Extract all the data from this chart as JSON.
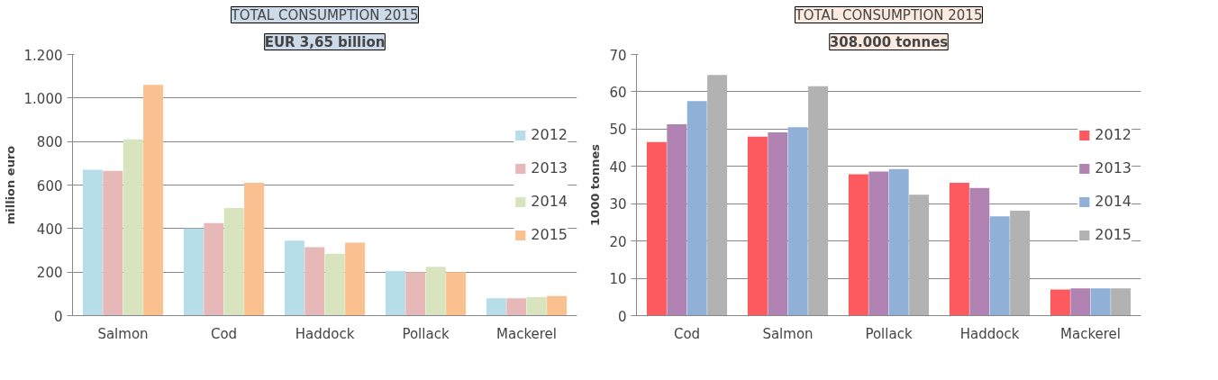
{
  "chart_data": [
    {
      "type": "bar",
      "title": "TOTAL CONSUMPTION 2015",
      "subtitle": "EUR 3,65 billion",
      "ylabel": "million euro",
      "categories": [
        "Salmon",
        "Cod",
        "Haddock",
        "Pollack",
        "Mackerel"
      ],
      "series": [
        {
          "name": "2012",
          "color": "#b7dde8",
          "values": [
            670,
            400,
            345,
            205,
            80
          ]
        },
        {
          "name": "2013",
          "color": "#e6b9b8",
          "values": [
            665,
            425,
            315,
            200,
            80
          ]
        },
        {
          "name": "2014",
          "color": "#d7e4bd",
          "values": [
            810,
            495,
            285,
            225,
            85
          ]
        },
        {
          "name": "2015",
          "color": "#fac090",
          "values": [
            1060,
            610,
            335,
            200,
            90
          ]
        }
      ],
      "ylim": [
        0,
        1200
      ],
      "yticks": [
        0,
        200,
        400,
        600,
        800,
        {
          "value": 1000,
          "label": "1.000"
        },
        {
          "value": 1200,
          "label": "1.200"
        }
      ],
      "grid": "y",
      "legend": "right"
    },
    {
      "type": "bar",
      "title": "TOTAL CONSUMPTION 2015",
      "subtitle": "308.000 tonnes",
      "ylabel": "1000 tonnes",
      "categories": [
        "Cod",
        "Salmon",
        "Pollack",
        "Haddock",
        "Mackerel"
      ],
      "series": [
        {
          "name": "2012",
          "color": "#fd5a5f",
          "values": [
            46.5,
            48.0,
            37.9,
            35.6,
            7.0
          ]
        },
        {
          "name": "2013",
          "color": "#b083b2",
          "values": [
            51.3,
            49.1,
            38.6,
            34.2,
            7.3
          ]
        },
        {
          "name": "2014",
          "color": "#91b0d8",
          "values": [
            57.5,
            50.5,
            39.3,
            26.6,
            7.3
          ]
        },
        {
          "name": "2015",
          "color": "#b2b2b2",
          "values": [
            64.5,
            61.5,
            32.4,
            28.1,
            7.3
          ]
        }
      ],
      "ylim": [
        0,
        70
      ],
      "yticks": [
        0,
        10,
        20,
        30,
        40,
        50,
        60,
        70
      ],
      "grid": "y",
      "legend": "right"
    }
  ]
}
